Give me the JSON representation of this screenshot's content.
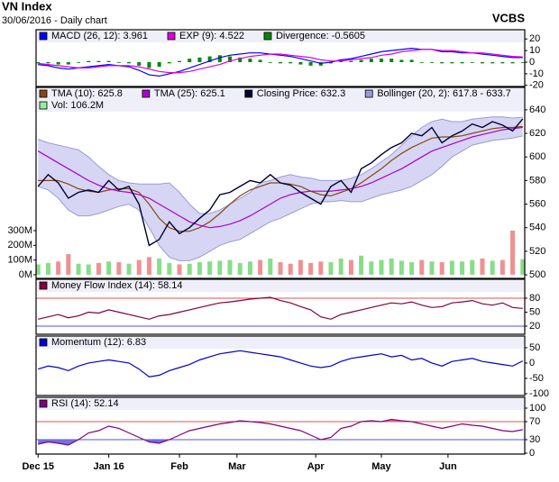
{
  "header": {
    "title": "VN Index",
    "subtitle": "30/06/2016 - Daily chart",
    "brand": "VCBS"
  },
  "chart_data": [
    {
      "type": "line",
      "ylim": [
        -21,
        28
      ],
      "yticks": [
        20,
        10,
        0,
        -10,
        -20
      ],
      "xlim": [
        -0.2,
        48.2
      ],
      "series": [
        {
          "name": "MACD (26, 12): 3.961",
          "type": "line",
          "color": "#0000ff",
          "values": [
            -2,
            -3,
            -5,
            -6,
            -5,
            -4,
            -3,
            -2,
            -3,
            -4,
            -7,
            -11,
            -12,
            -10,
            -8,
            -5,
            -2,
            1,
            4,
            6,
            7,
            8,
            8,
            7,
            6,
            5,
            3,
            1,
            -1,
            0,
            2,
            3,
            5,
            7,
            9,
            10,
            11,
            12,
            11,
            11,
            9,
            9,
            8,
            8,
            7,
            6,
            5,
            4,
            3.961
          ]
        },
        {
          "name": "EXP (9): 4.522",
          "type": "line",
          "color": "#dd00dd",
          "values": [
            -1,
            -2,
            -3,
            -4,
            -5,
            -5,
            -4,
            -3,
            -3,
            -3,
            -4,
            -6,
            -8,
            -9,
            -9,
            -8,
            -6,
            -4,
            -2,
            1,
            3,
            5,
            6,
            7,
            7,
            6,
            5,
            4,
            2,
            1,
            1,
            2,
            3,
            4,
            6,
            7,
            9,
            10,
            11,
            11,
            10,
            10,
            9,
            8,
            8,
            7,
            6,
            5,
            4.522
          ]
        },
        {
          "name": "Divergence: -0.5605",
          "type": "bar",
          "color": "#008800",
          "values": [
            -1,
            -1,
            -2,
            -2,
            0,
            1,
            1,
            1,
            0,
            -1,
            -3,
            -5,
            -4,
            -1,
            1,
            3,
            4,
            5,
            6,
            5,
            4,
            3,
            2,
            0,
            -1,
            -1,
            -2,
            -3,
            -3,
            -1,
            1,
            1,
            2,
            3,
            3,
            3,
            2,
            2,
            0,
            0,
            -1,
            -1,
            -1,
            0,
            -1,
            -1,
            -1,
            -1,
            -0.5605
          ]
        }
      ]
    },
    {
      "type": "line",
      "ylim": [
        497,
        659
      ],
      "yticks": [
        640,
        620,
        600,
        580,
        560,
        540,
        520,
        500
      ],
      "xlim": [
        -0.2,
        48.2
      ],
      "y2lim": [
        -25,
        1275
      ],
      "y2ticks": [
        {
          "value": 300,
          "label": "300M"
        },
        {
          "value": 200,
          "label": "200M"
        },
        {
          "value": 100,
          "label": "100M"
        },
        {
          "value": 0,
          "label": "0M"
        }
      ],
      "series": [
        {
          "name": "TMA (10): 625.8",
          "type": "line",
          "color": "#8b4513",
          "values": [
            580,
            580,
            580,
            577,
            573,
            571,
            570,
            572,
            573,
            573,
            570,
            560,
            548,
            540,
            537,
            537,
            540,
            545,
            552,
            560,
            567,
            572,
            575,
            578,
            578,
            577,
            575,
            571,
            568,
            567,
            570,
            573,
            578,
            584,
            590,
            597,
            603,
            608,
            612,
            616,
            617,
            617,
            618,
            620,
            622,
            624,
            625,
            625,
            625.8
          ]
        },
        {
          "name": "TMA (25): 625.1",
          "type": "line",
          "color": "#aa00cc",
          "values": [
            605,
            600,
            595,
            590,
            585,
            580,
            576,
            573,
            571,
            570,
            568,
            565,
            560,
            555,
            550,
            545,
            542,
            540,
            541,
            543,
            546,
            550,
            555,
            560,
            565,
            568,
            570,
            571,
            571,
            571,
            572,
            573,
            575,
            578,
            582,
            586,
            590,
            595,
            600,
            605,
            608,
            611,
            614,
            617,
            619,
            621,
            623,
            624,
            625.1
          ]
        },
        {
          "name": "Closing Price: 632.3",
          "type": "line",
          "color": "#000033",
          "values": [
            575,
            585,
            578,
            565,
            570,
            572,
            570,
            580,
            572,
            575,
            560,
            525,
            530,
            545,
            535,
            540,
            548,
            555,
            568,
            570,
            575,
            580,
            578,
            585,
            578,
            576,
            570,
            565,
            560,
            575,
            580,
            570,
            590,
            595,
            602,
            608,
            612,
            620,
            618,
            625,
            612,
            618,
            622,
            628,
            625,
            630,
            627,
            622,
            632.3
          ]
        },
        {
          "name": "Bollinger (20, 2): 617.8 - 633.7",
          "type": "band",
          "color": "#c8c8f0",
          "upper": [
            615,
            612,
            610,
            608,
            606,
            600,
            592,
            585,
            580,
            578,
            577,
            577,
            577,
            578,
            570,
            560,
            552,
            552,
            555,
            560,
            565,
            570,
            578,
            580,
            583,
            585,
            583,
            582,
            580,
            580,
            580,
            582,
            585,
            590,
            596,
            602,
            610,
            618,
            625,
            630,
            632,
            630,
            630,
            632,
            633,
            634,
            634,
            633,
            633.7
          ],
          "lower": [
            575,
            572,
            565,
            555,
            550,
            550,
            552,
            555,
            558,
            560,
            555,
            540,
            525,
            515,
            512,
            512,
            515,
            520,
            525,
            528,
            530,
            535,
            540,
            545,
            548,
            552,
            556,
            560,
            562,
            562,
            563,
            562,
            562,
            565,
            568,
            570,
            572,
            575,
            580,
            585,
            592,
            600,
            605,
            610,
            612,
            614,
            615,
            616,
            617.8
          ]
        },
        {
          "name": "Vol: 106.2M",
          "type": "bar",
          "axis": "y2",
          "color": "#99ee99",
          "up_color": "#88dd88",
          "down_color": "#f09090",
          "values": [
            70,
            80,
            90,
            140,
            75,
            70,
            80,
            90,
            85,
            75,
            100,
            120,
            110,
            80,
            70,
            75,
            85,
            90,
            95,
            100,
            80,
            90,
            100,
            110,
            85,
            75,
            100,
            80,
            90,
            85,
            110,
            100,
            130,
            90,
            100,
            110,
            95,
            85,
            100,
            90,
            85,
            95,
            90,
            100,
            110,
            95,
            100,
            300,
            106.2
          ]
        }
      ]
    },
    {
      "type": "line",
      "ylim": [
        2.6,
        120.6
      ],
      "yticks": [
        80,
        50,
        20
      ],
      "xlim": [
        -0.2,
        48.2
      ],
      "hlines": [
        {
          "value": 80,
          "color": "#e05050",
          "fill": "#f07070",
          "side": "above"
        },
        {
          "value": 20,
          "color": "#5050e0"
        }
      ],
      "series": [
        {
          "name": "Money Flow Index (14): 58.14",
          "type": "line",
          "color": "#800040",
          "values": [
            35,
            40,
            45,
            38,
            42,
            50,
            48,
            55,
            50,
            45,
            40,
            35,
            42,
            45,
            50,
            55,
            60,
            65,
            70,
            72,
            75,
            78,
            80,
            82,
            75,
            70,
            62,
            55,
            40,
            35,
            45,
            50,
            55,
            60,
            65,
            70,
            68,
            72,
            65,
            60,
            62,
            70,
            72,
            75,
            68,
            65,
            70,
            60,
            58.14
          ]
        }
      ]
    },
    {
      "type": "line",
      "ylim": [
        -106,
        88
      ],
      "yticks": [
        50,
        0,
        -50,
        -100
      ],
      "xlim": [
        -0.2,
        48.2
      ],
      "series": [
        {
          "name": "Momentum (12): 6.83",
          "type": "line",
          "color": "#0000cc",
          "values": [
            -20,
            -10,
            -15,
            -25,
            -10,
            0,
            5,
            10,
            5,
            0,
            -20,
            -45,
            -40,
            -25,
            -15,
            -5,
            10,
            20,
            30,
            35,
            40,
            35,
            30,
            25,
            20,
            10,
            0,
            -10,
            -15,
            -10,
            5,
            15,
            20,
            25,
            30,
            20,
            25,
            10,
            15,
            0,
            -10,
            5,
            10,
            15,
            5,
            0,
            -5,
            -10,
            6.83
          ]
        }
      ]
    },
    {
      "type": "line",
      "ylim": [
        -2,
        124
      ],
      "yticks": [
        100,
        70,
        30,
        0
      ],
      "xlim": [
        -0.2,
        48.2
      ],
      "hlines": [
        {
          "value": 70,
          "color": "#e05050",
          "fill": "#f07070",
          "side": "above"
        },
        {
          "value": 30,
          "color": "#5050e0",
          "fill": "#7070e0",
          "side": "below"
        }
      ],
      "xticks": [
        {
          "value": 0,
          "label": "Dec 15"
        },
        {
          "value": 7,
          "label": "Jan 16"
        },
        {
          "value": 14,
          "label": "Feb"
        },
        {
          "value": 19.7,
          "label": "Mar"
        },
        {
          "value": 27.5,
          "label": "Apr"
        },
        {
          "value": 34,
          "label": "May"
        },
        {
          "value": 40.6,
          "label": "Jun"
        }
      ],
      "series": [
        {
          "name": "RSI (14): 52.14",
          "type": "line",
          "color": "#800080",
          "values": [
            20,
            25,
            22,
            18,
            30,
            45,
            50,
            60,
            55,
            45,
            35,
            25,
            22,
            30,
            40,
            50,
            55,
            60,
            65,
            68,
            72,
            70,
            68,
            65,
            60,
            55,
            50,
            40,
            30,
            35,
            55,
            60,
            70,
            72,
            70,
            75,
            72,
            70,
            65,
            60,
            55,
            60,
            65,
            62,
            60,
            55,
            50,
            48,
            52.14
          ]
        }
      ]
    }
  ]
}
